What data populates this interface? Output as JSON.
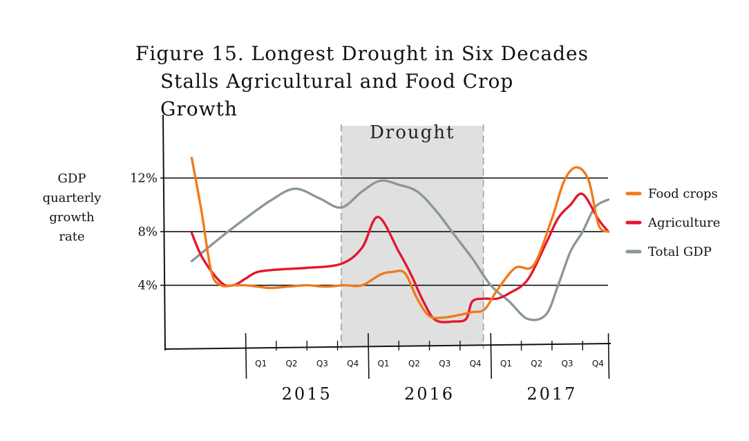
{
  "figure": {
    "title_line1": "Figure 15. Longest Drought in Six Decades",
    "title_line2": "Stalls Agricultural and Food Crop Growth"
  },
  "chart_data": {
    "type": "line",
    "ylabel_lines": [
      "GDP",
      "quarterly",
      "growth",
      "rate"
    ],
    "yticks": [
      {
        "value": 4,
        "label": "4%"
      },
      {
        "value": 8,
        "label": "8%"
      },
      {
        "value": 12,
        "label": "12%"
      }
    ],
    "ylim": [
      -0.5,
      16
    ],
    "quarter_labels": [
      "Q1",
      "Q2",
      "Q3",
      "Q4",
      "Q1",
      "Q2",
      "Q3",
      "Q4",
      "Q1",
      "Q2",
      "Q3",
      "Q4"
    ],
    "years": [
      "2015",
      "2016",
      "2017"
    ],
    "shaded_region": {
      "label": "Drought",
      "x_start": 2015.78,
      "x_end": 2016.94,
      "color": "#e0e0e0"
    },
    "xlim": [
      2014.45,
      2017.98
    ],
    "series": [
      {
        "name": "Food crops",
        "color": "#f07a1a",
        "x": [
          2014.56,
          2014.64,
          2014.72,
          2014.8,
          2014.9,
          2015.0,
          2015.1,
          2015.2,
          2015.35,
          2015.5,
          2015.65,
          2015.8,
          2015.95,
          2016.1,
          2016.2,
          2016.3,
          2016.4,
          2016.5,
          2016.62,
          2016.75,
          2016.85,
          2016.95,
          2017.05,
          2017.2,
          2017.35,
          2017.5,
          2017.6,
          2017.7,
          2017.8,
          2017.88,
          2017.96
        ],
        "y": [
          13.5,
          9.5,
          5.0,
          4.0,
          4.0,
          4.0,
          3.9,
          3.8,
          3.9,
          4.0,
          3.9,
          4.0,
          4.0,
          4.8,
          5.0,
          4.9,
          3.0,
          1.7,
          1.6,
          1.8,
          2.0,
          2.2,
          3.6,
          5.3,
          5.5,
          9.0,
          11.8,
          12.8,
          11.8,
          8.5,
          8.0
        ]
      },
      {
        "name": "Agriculture",
        "color": "#e3172d",
        "x": [
          2014.56,
          2014.65,
          2014.8,
          2014.9,
          2015.0,
          2015.1,
          2015.3,
          2015.5,
          2015.78,
          2015.95,
          2016.08,
          2016.25,
          2016.35,
          2016.45,
          2016.55,
          2016.7,
          2016.8,
          2016.85,
          2016.95,
          2017.05,
          2017.15,
          2017.3,
          2017.45,
          2017.55,
          2017.65,
          2017.75,
          2017.88,
          2017.96
        ],
        "y": [
          7.9,
          6.0,
          4.2,
          4.0,
          4.5,
          5.0,
          5.2,
          5.3,
          5.6,
          6.8,
          9.1,
          6.5,
          4.8,
          2.8,
          1.4,
          1.3,
          1.5,
          2.8,
          3.0,
          3.0,
          3.4,
          4.4,
          7.1,
          9.0,
          10.0,
          10.8,
          8.9,
          8.0
        ]
      },
      {
        "name": "Total GDP",
        "color": "#8a969d",
        "x": [
          2014.56,
          2014.8,
          2015.0,
          2015.2,
          2015.4,
          2015.6,
          2015.78,
          2015.95,
          2016.1,
          2016.25,
          2016.4,
          2016.55,
          2016.7,
          2016.85,
          2017.0,
          2017.15,
          2017.3,
          2017.45,
          2017.55,
          2017.65,
          2017.75,
          2017.85,
          2017.96
        ],
        "y": [
          5.8,
          7.6,
          9.0,
          10.3,
          11.2,
          10.5,
          9.8,
          11.0,
          11.8,
          11.5,
          11.0,
          9.6,
          7.8,
          6.0,
          4.0,
          2.8,
          1.5,
          1.8,
          4.0,
          6.5,
          8.0,
          9.8,
          10.4
        ]
      }
    ],
    "legend": {
      "placement": "right"
    }
  }
}
